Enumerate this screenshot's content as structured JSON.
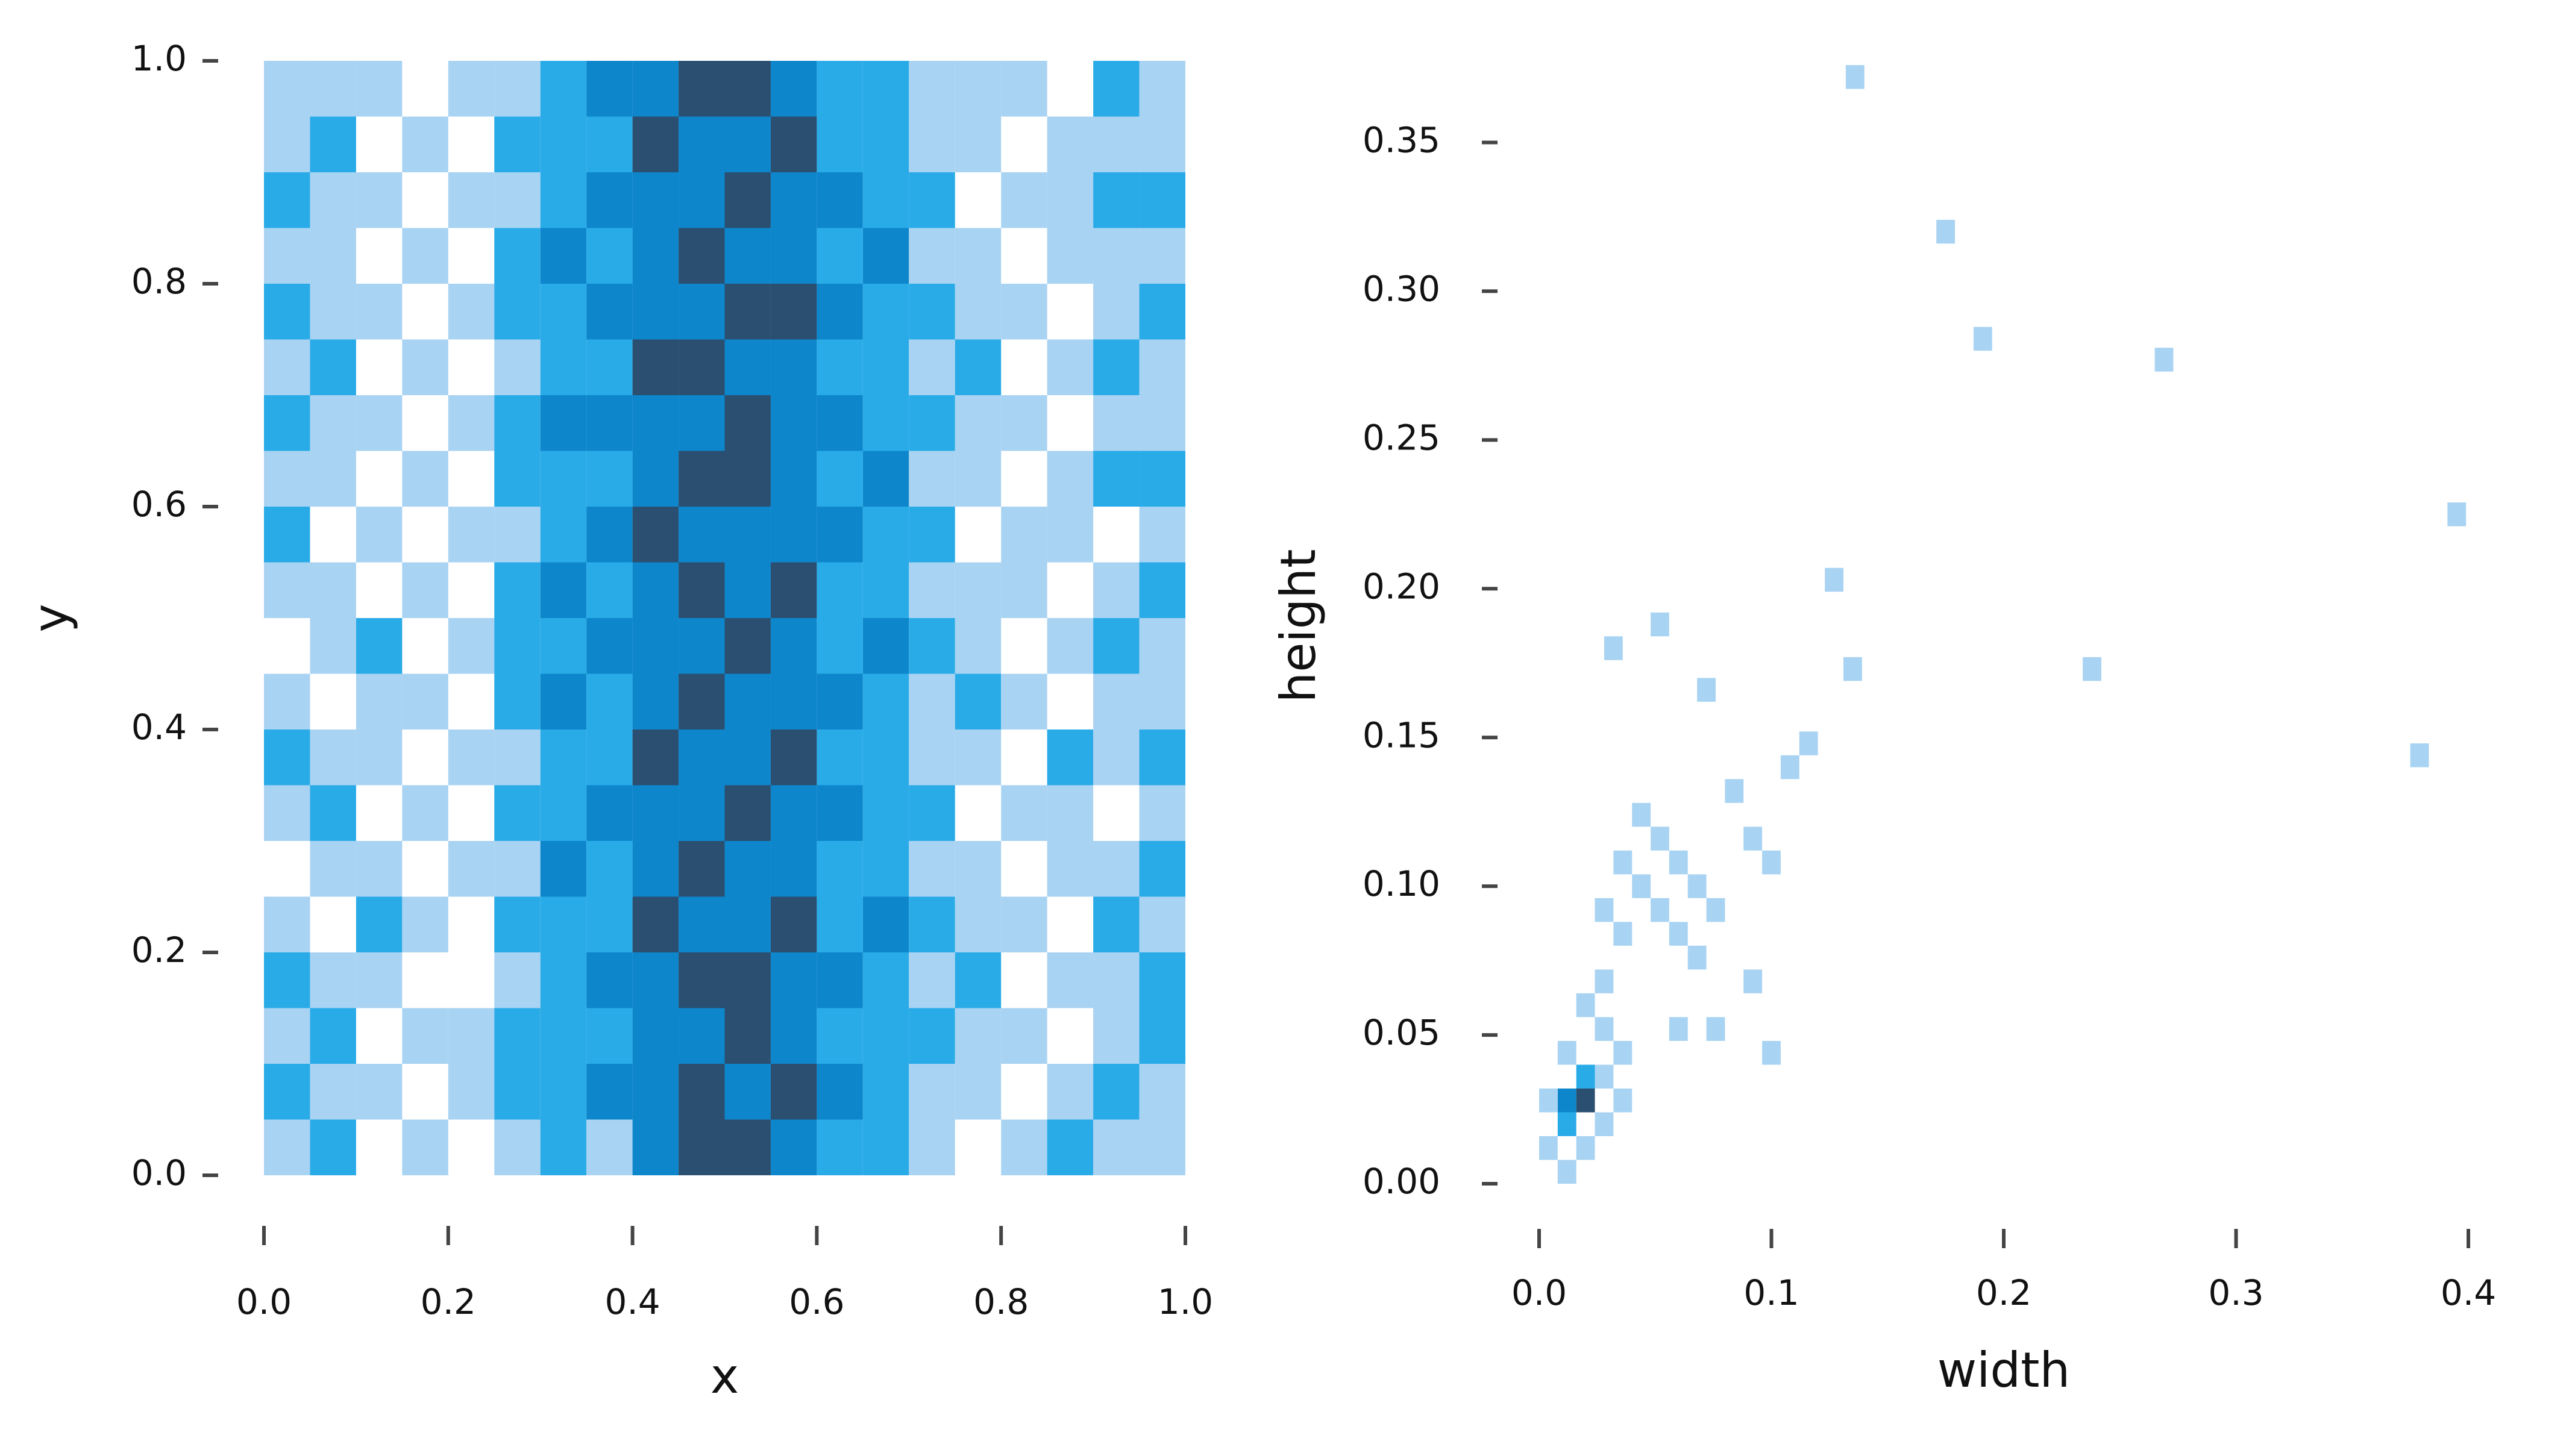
{
  "chart_data": [
    {
      "type": "heatmap",
      "xlabel": "x",
      "ylabel": "y",
      "xlim": [
        0,
        1
      ],
      "ylim": [
        0,
        1
      ],
      "xticks": [
        {
          "value": 0,
          "label": "0.0"
        },
        0.2,
        0.4,
        0.6,
        0.8,
        {
          "value": 1,
          "label": "1.0"
        }
      ],
      "yticks": [
        {
          "value": 0,
          "label": "0.0"
        },
        0.2,
        0.4,
        0.6,
        0.8,
        {
          "value": 1,
          "label": "1.0"
        }
      ],
      "colors": [
        "#a9d3f2",
        "#29abe8",
        "#0d86cc",
        "#2a4f70"
      ],
      "xbins": [
        0,
        0.05,
        0.1,
        0.15,
        0.2,
        0.25,
        0.3,
        0.35,
        0.4,
        0.45,
        0.5,
        0.55,
        0.6,
        0.65,
        0.7,
        0.75,
        0.8,
        0.85,
        0.9,
        0.95,
        1
      ],
      "ybins": [
        0,
        0.05,
        0.1,
        0.15,
        0.2,
        0.25,
        0.3,
        0.35,
        0.4,
        0.45,
        0.5,
        0.55,
        0.6,
        0.65,
        0.7,
        0.75,
        0.8,
        0.85,
        0.9,
        0.95,
        1
      ],
      "counts": [
        [
          1,
          2,
          0,
          1,
          0,
          1,
          2,
          1,
          3,
          4,
          4,
          3,
          2,
          2,
          1,
          0,
          1,
          2,
          1,
          1
        ],
        [
          2,
          1,
          1,
          0,
          1,
          2,
          2,
          3,
          3,
          4,
          3,
          4,
          3,
          2,
          1,
          1,
          0,
          1,
          2,
          1
        ],
        [
          1,
          2,
          0,
          1,
          1,
          2,
          2,
          2,
          3,
          3,
          4,
          3,
          2,
          2,
          2,
          1,
          1,
          0,
          1,
          2
        ],
        [
          2,
          1,
          1,
          0,
          0,
          1,
          2,
          3,
          3,
          4,
          4,
          3,
          3,
          2,
          1,
          2,
          0,
          1,
          1,
          2
        ],
        [
          1,
          0,
          2,
          1,
          0,
          2,
          2,
          2,
          4,
          3,
          3,
          4,
          2,
          3,
          2,
          1,
          1,
          0,
          2,
          1
        ],
        [
          0,
          1,
          1,
          0,
          1,
          1,
          3,
          2,
          3,
          4,
          3,
          3,
          2,
          2,
          1,
          1,
          0,
          1,
          1,
          2
        ],
        [
          1,
          2,
          0,
          1,
          0,
          2,
          2,
          3,
          3,
          3,
          4,
          3,
          3,
          2,
          2,
          0,
          1,
          1,
          0,
          1
        ],
        [
          2,
          1,
          1,
          0,
          1,
          1,
          2,
          2,
          4,
          3,
          3,
          4,
          2,
          2,
          1,
          1,
          0,
          2,
          1,
          2
        ],
        [
          1,
          0,
          1,
          1,
          0,
          2,
          3,
          2,
          3,
          4,
          3,
          3,
          3,
          2,
          1,
          2,
          1,
          0,
          1,
          1
        ],
        [
          0,
          1,
          2,
          0,
          1,
          2,
          2,
          3,
          3,
          3,
          4,
          3,
          2,
          3,
          2,
          1,
          0,
          1,
          2,
          1
        ],
        [
          1,
          1,
          0,
          1,
          0,
          2,
          3,
          2,
          3,
          4,
          3,
          4,
          2,
          2,
          1,
          1,
          1,
          0,
          1,
          2
        ],
        [
          2,
          0,
          1,
          0,
          1,
          1,
          2,
          3,
          4,
          3,
          3,
          3,
          3,
          2,
          2,
          0,
          1,
          1,
          0,
          1
        ],
        [
          1,
          1,
          0,
          1,
          0,
          2,
          2,
          2,
          3,
          4,
          4,
          3,
          2,
          3,
          1,
          1,
          0,
          1,
          2,
          2
        ],
        [
          2,
          1,
          1,
          0,
          1,
          2,
          3,
          3,
          3,
          3,
          4,
          3,
          3,
          2,
          2,
          1,
          1,
          0,
          1,
          1
        ],
        [
          1,
          2,
          0,
          1,
          0,
          1,
          2,
          2,
          4,
          4,
          3,
          3,
          2,
          2,
          1,
          2,
          0,
          1,
          2,
          1
        ],
        [
          2,
          1,
          1,
          0,
          1,
          2,
          2,
          3,
          3,
          3,
          4,
          4,
          3,
          2,
          2,
          1,
          1,
          0,
          1,
          2
        ],
        [
          1,
          1,
          0,
          1,
          0,
          2,
          3,
          2,
          3,
          4,
          3,
          3,
          2,
          3,
          1,
          1,
          0,
          1,
          1,
          1
        ],
        [
          2,
          1,
          1,
          0,
          1,
          1,
          2,
          3,
          3,
          3,
          4,
          3,
          3,
          2,
          2,
          0,
          1,
          1,
          2,
          2
        ],
        [
          1,
          2,
          0,
          1,
          0,
          2,
          2,
          2,
          4,
          3,
          3,
          4,
          2,
          2,
          1,
          1,
          0,
          1,
          1,
          1
        ],
        [
          1,
          1,
          1,
          0,
          1,
          1,
          2,
          3,
          3,
          4,
          4,
          3,
          2,
          2,
          1,
          1,
          1,
          0,
          2,
          1
        ]
      ]
    },
    {
      "type": "binned",
      "xlabel": "width",
      "ylabel": "height",
      "xlim": [
        0,
        0.4
      ],
      "ylim": [
        0,
        0.375
      ],
      "xticks": [
        {
          "value": 0,
          "label": "0.0"
        },
        0.1,
        0.2,
        0.3,
        0.4
      ],
      "yticks": [
        {
          "value": 0,
          "label": "0.00"
        },
        0.05,
        {
          "value": 0.1,
          "label": "0.10"
        },
        0.15,
        {
          "value": 0.2,
          "label": "0.20"
        },
        0.25,
        {
          "value": 0.3,
          "label": "0.30"
        },
        0.35
      ],
      "colors": [
        "#a9d3f2",
        "#29abe8",
        "#0d86cc",
        "#2a4f70"
      ],
      "bin_width": 0.008,
      "bin_height": 0.008,
      "x": [
        0.132,
        0.171,
        0.187,
        0.265,
        0.391,
        0.123,
        0.131,
        0.234,
        0.375,
        0.028,
        0.048,
        0.068,
        0.04,
        0.048,
        0.032,
        0.056,
        0.04,
        0.064,
        0.024,
        0.048,
        0.072,
        0.032,
        0.056,
        0.064,
        0.088,
        0.096,
        0.08,
        0.104,
        0.112,
        0.088,
        0.096,
        0.072,
        0.056,
        0.024,
        0.016,
        0.024,
        0.032,
        0.008,
        0.016,
        0.008,
        0.016,
        0.008,
        0.016,
        0.024,
        0.032,
        0.0,
        0.008,
        0.024,
        0.0
      ],
      "y": [
        0.368,
        0.316,
        0.28,
        0.273,
        0.221,
        0.199,
        0.169,
        0.169,
        0.14,
        0.176,
        0.184,
        0.162,
        0.12,
        0.112,
        0.104,
        0.104,
        0.096,
        0.096,
        0.088,
        0.088,
        0.088,
        0.08,
        0.08,
        0.072,
        0.112,
        0.104,
        0.128,
        0.136,
        0.144,
        0.064,
        0.04,
        0.048,
        0.048,
        0.064,
        0.056,
        0.048,
        0.04,
        0.04,
        0.032,
        0.024,
        0.024,
        0.016,
        0.008,
        0.016,
        0.024,
        0.008,
        0.0,
        0.032,
        0.024
      ],
      "values": [
        1,
        1,
        1,
        1,
        1,
        1,
        1,
        1,
        1,
        1,
        1,
        1,
        1,
        1,
        1,
        1,
        1,
        1,
        1,
        1,
        1,
        1,
        1,
        1,
        1,
        1,
        1,
        1,
        1,
        1,
        1,
        1,
        1,
        1,
        1,
        1,
        1,
        1,
        2,
        3,
        4,
        2,
        1,
        1,
        1,
        1,
        1,
        1,
        1
      ]
    }
  ]
}
